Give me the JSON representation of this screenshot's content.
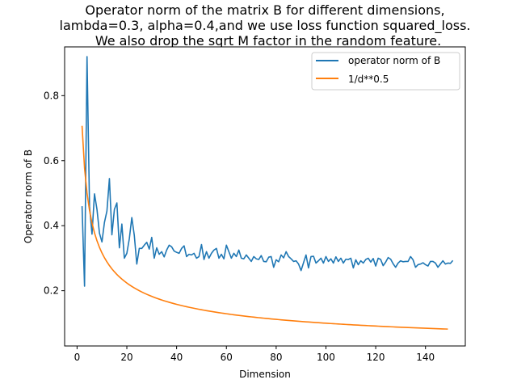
{
  "chart_data": {
    "type": "line",
    "title_lines": [
      "Operator norm of the matrix B for different dimensions,",
      "lambda=0.3, alpha=0.4,and we use loss function squared_loss.",
      "We also drop the sqrt M factor in the random feature."
    ],
    "xlabel": "Dimension",
    "ylabel": "Operator norm of B",
    "xlim": [
      -5,
      156
    ],
    "ylim": [
      0.03,
      0.95
    ],
    "xticks": [
      0,
      20,
      40,
      60,
      80,
      100,
      120,
      140
    ],
    "yticks": [
      0.2,
      0.4,
      0.6,
      0.8
    ],
    "xtick_labels": [
      "0",
      "20",
      "40",
      "60",
      "80",
      "100",
      "120",
      "140"
    ],
    "ytick_labels": [
      "0.2",
      "0.4",
      "0.6",
      "0.8"
    ],
    "grid": false,
    "legend_position": "top-right",
    "series": [
      {
        "name": "operator norm of B",
        "color": "#1f77b4",
        "x_start": 2,
        "values": [
          0.46,
          0.214,
          0.92,
          0.46,
          0.374,
          0.498,
          0.45,
          0.377,
          0.35,
          0.41,
          0.445,
          0.545,
          0.372,
          0.45,
          0.47,
          0.332,
          0.405,
          0.3,
          0.315,
          0.36,
          0.425,
          0.37,
          0.282,
          0.33,
          0.33,
          0.34,
          0.349,
          0.328,
          0.364,
          0.3,
          0.332,
          0.312,
          0.32,
          0.304,
          0.325,
          0.34,
          0.335,
          0.322,
          0.318,
          0.315,
          0.33,
          0.338,
          0.305,
          0.312,
          0.31,
          0.315,
          0.3,
          0.305,
          0.342,
          0.296,
          0.32,
          0.3,
          0.315,
          0.325,
          0.33,
          0.3,
          0.312,
          0.298,
          0.34,
          0.32,
          0.3,
          0.315,
          0.305,
          0.325,
          0.3,
          0.298,
          0.31,
          0.3,
          0.29,
          0.305,
          0.298,
          0.296,
          0.308,
          0.29,
          0.289,
          0.303,
          0.305,
          0.272,
          0.295,
          0.289,
          0.31,
          0.301,
          0.32,
          0.305,
          0.298,
          0.29,
          0.292,
          0.282,
          0.262,
          0.286,
          0.31,
          0.27,
          0.305,
          0.306,
          0.285,
          0.292,
          0.3,
          0.285,
          0.305,
          0.29,
          0.298,
          0.285,
          0.304,
          0.29,
          0.3,
          0.285,
          0.297,
          0.296,
          0.3,
          0.27,
          0.295,
          0.28,
          0.292,
          0.285,
          0.296,
          0.3,
          0.288,
          0.299,
          0.276,
          0.3,
          0.296,
          0.277,
          0.288,
          0.302,
          0.297,
          0.283,
          0.272,
          0.285,
          0.292,
          0.289,
          0.29,
          0.29,
          0.305,
          0.295,
          0.272,
          0.28,
          0.282,
          0.286,
          0.28,
          0.276,
          0.29,
          0.29,
          0.285,
          0.272,
          0.282,
          0.292,
          0.282,
          0.285,
          0.284,
          0.293
        ]
      },
      {
        "name": "1/d**0.5",
        "color": "#ff7f0e",
        "formula": "1/sqrt(d)",
        "x_range": [
          2,
          149
        ]
      }
    ]
  }
}
